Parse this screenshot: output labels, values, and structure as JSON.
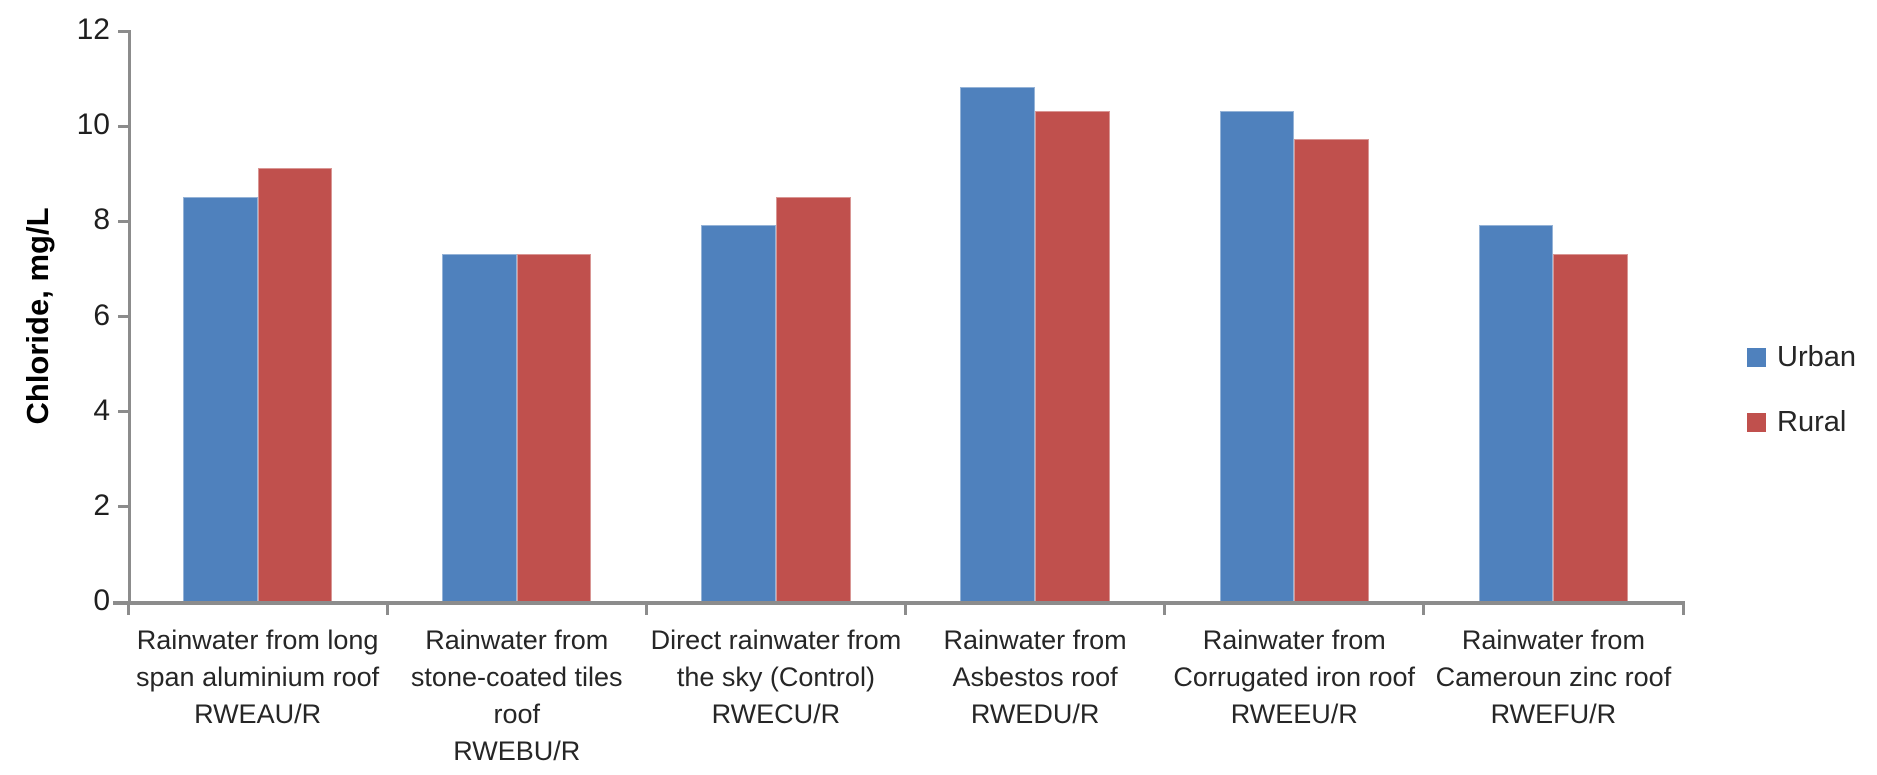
{
  "chart_data": {
    "type": "bar",
    "title": "",
    "xlabel": "",
    "ylabel": "Chloride, mg/L",
    "ylim": [
      0,
      12
    ],
    "yticks": [
      0,
      2,
      4,
      6,
      8,
      10,
      12
    ],
    "grid": false,
    "legend_position": "right",
    "axis_color": "#8C8C8C",
    "text_color": "#262626",
    "categories": [
      {
        "label": "Rainwater from long span aluminium roof RWEAU/R",
        "label_lines": [
          "Rainwater from long",
          "span aluminium roof",
          "RWEAU/R"
        ]
      },
      {
        "label": "Rainwater from stone-coated tiles roof RWEBU/R",
        "label_lines": [
          "Rainwater from",
          "stone-coated tiles",
          "roof",
          "RWEBU/R"
        ]
      },
      {
        "label": "Direct rainwater from the sky (Control) RWECU/R",
        "label_lines": [
          "Direct rainwater from",
          "the sky (Control)",
          "RWECU/R"
        ]
      },
      {
        "label": "Rainwater from Asbestos roof RWEDU/R",
        "label_lines": [
          "Rainwater from",
          "Asbestos roof",
          "RWEDU/R"
        ]
      },
      {
        "label": "Rainwater from Corrugated iron roof RWEEU/R",
        "label_lines": [
          "Rainwater from",
          "Corrugated iron roof",
          "RWEEU/R"
        ]
      },
      {
        "label": "Rainwater from Cameroun zinc roof RWEFU/R",
        "label_lines": [
          "Rainwater from",
          "Cameroun zinc roof",
          "RWEFU/R"
        ]
      }
    ],
    "series": [
      {
        "name": "Urban",
        "color": "#4F81BD",
        "border_color": "#95B3D7",
        "values": [
          8.5,
          7.3,
          7.9,
          10.8,
          10.3,
          7.9
        ]
      },
      {
        "name": "Rural",
        "color": "#C0504D",
        "border_color": "#D99694",
        "values": [
          9.1,
          7.3,
          8.5,
          10.3,
          9.7,
          7.3
        ]
      }
    ]
  }
}
